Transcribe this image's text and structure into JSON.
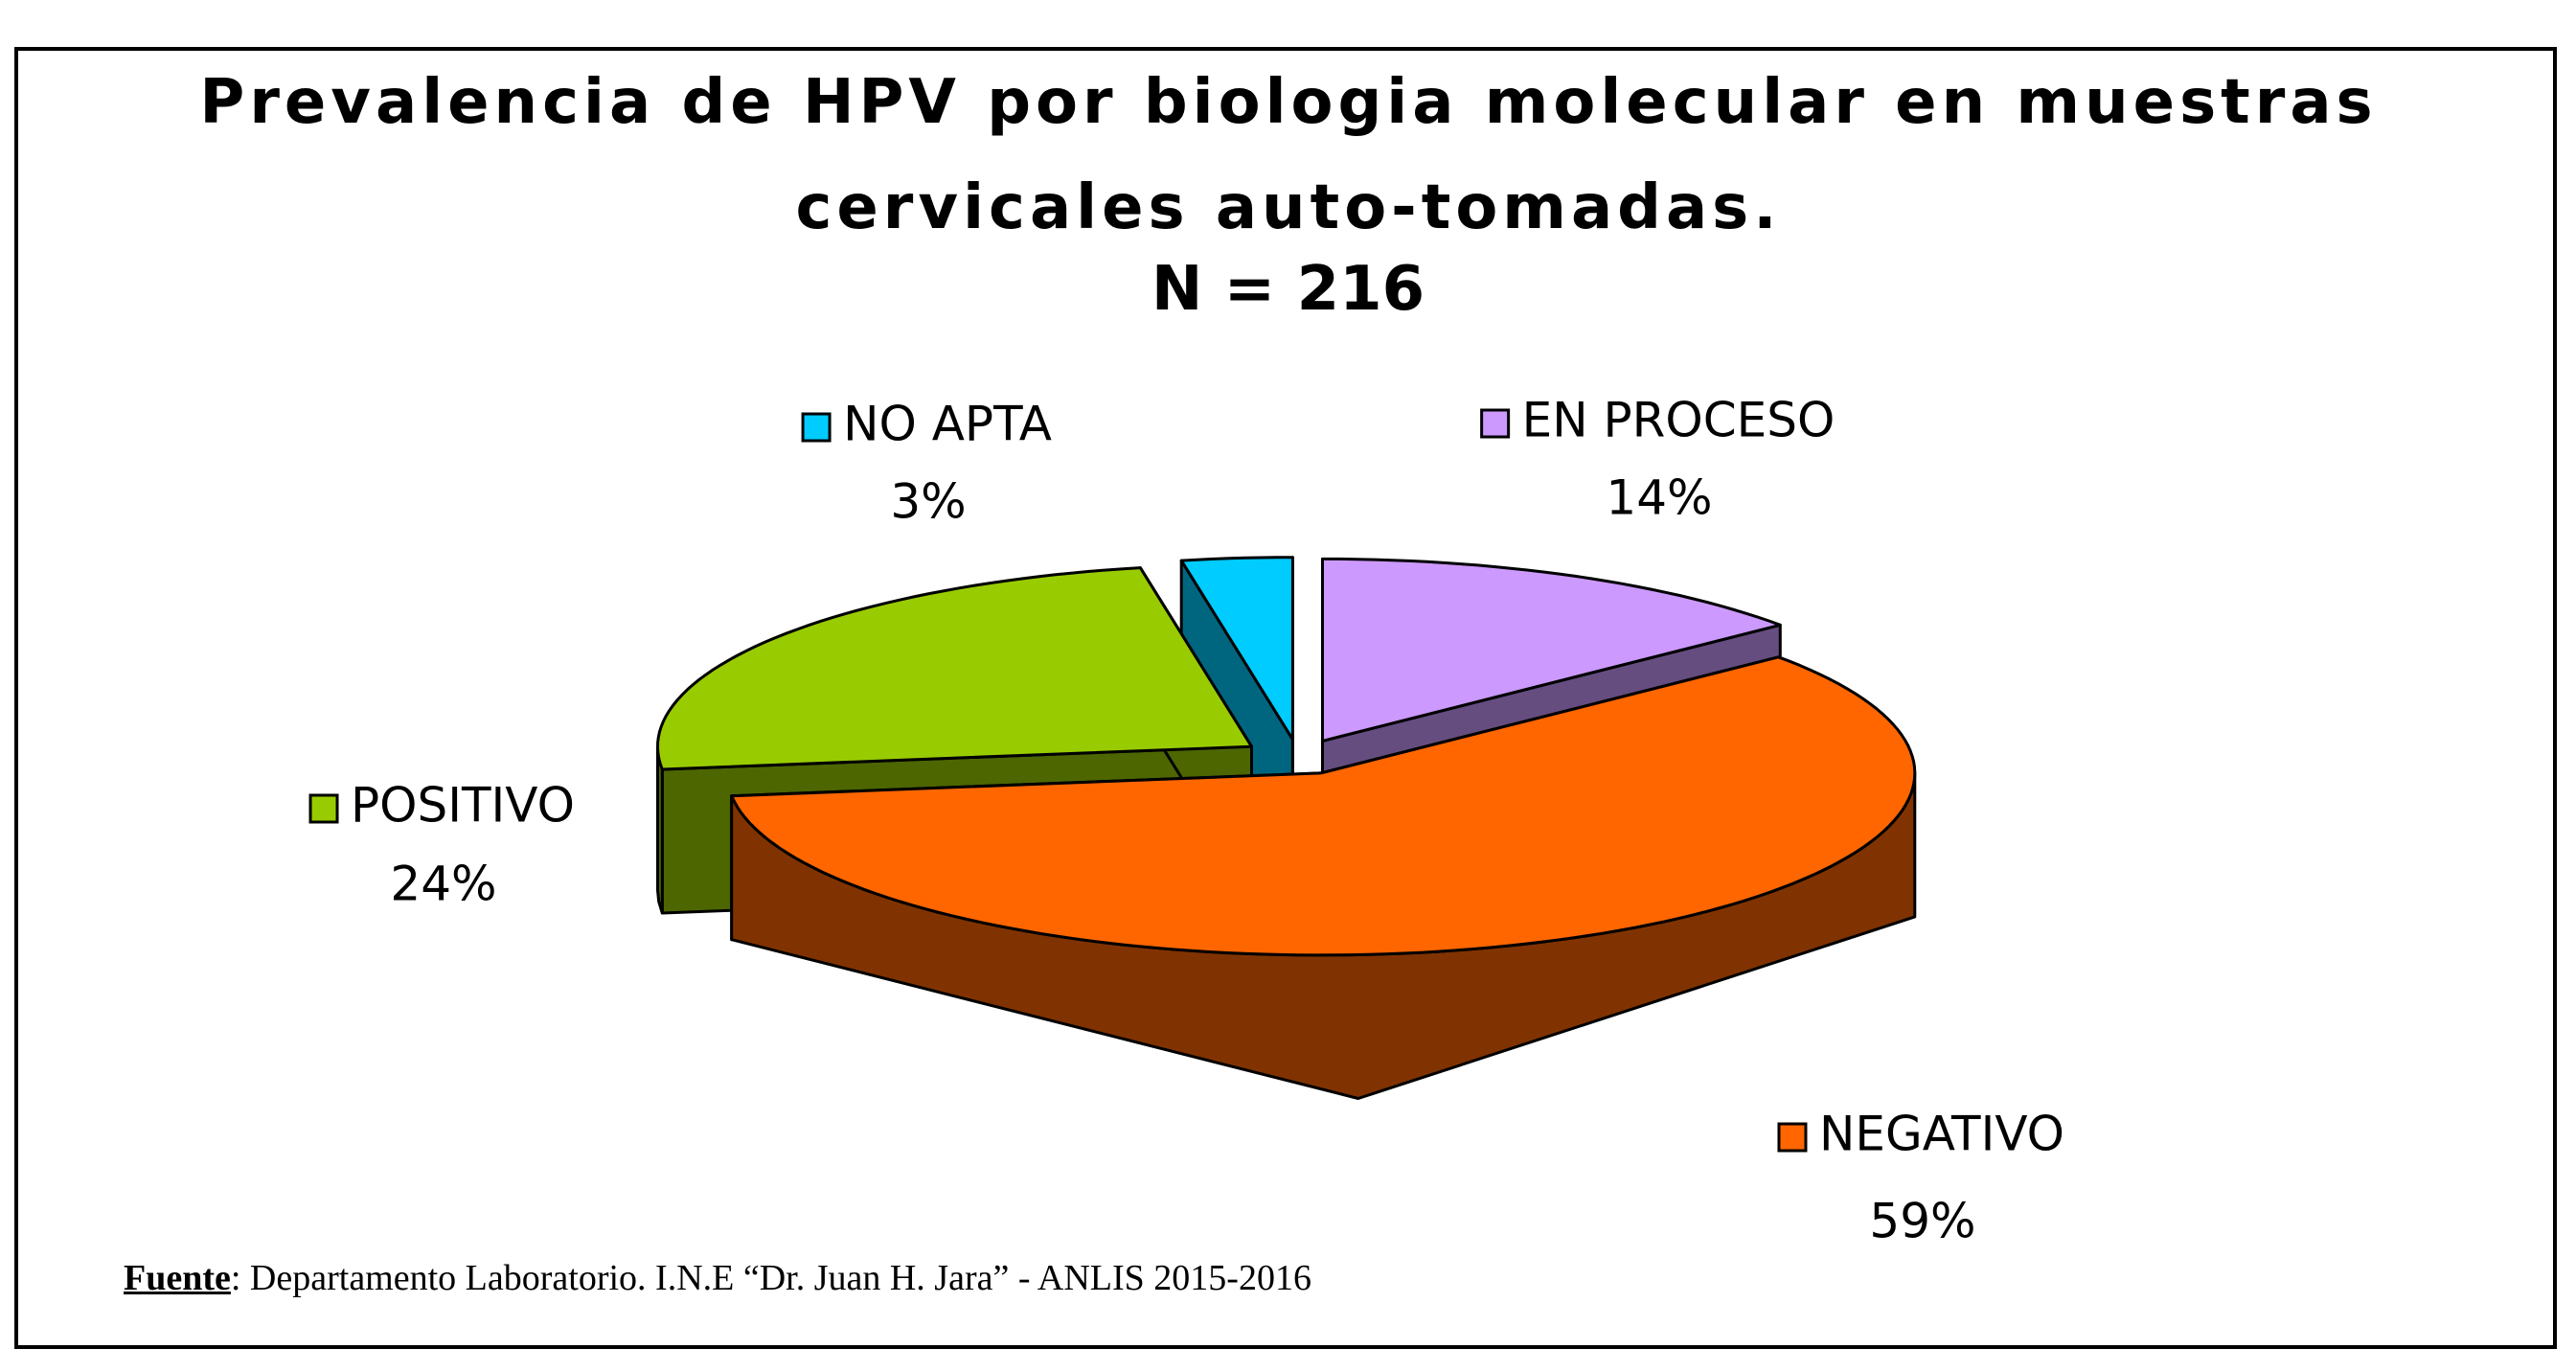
{
  "chart_data": {
    "type": "pie3d",
    "title": "Prevalencia de HPV por biologia molecular en muestras cervicales auto-tomadas.",
    "subtitle": "N = 216",
    "categories": [
      "EN PROCESO",
      "NEGATIVO",
      "POSITIVO",
      "NO APTA"
    ],
    "values": [
      14,
      59,
      24,
      3
    ],
    "value_labels": [
      "14%",
      "59%",
      "24%",
      "3%"
    ],
    "colors": [
      "#cc99ff",
      "#ff6600",
      "#99cc00",
      "#00ccff"
    ],
    "side_colors": [
      "#664d80",
      "#803300",
      "#4d6600",
      "#006680"
    ],
    "source": {
      "label": "Fuente",
      "text": ": Departamento Laboratorio. I.N.E “Dr. Juan H. Jara” - ANLIS  2015-2016"
    }
  }
}
